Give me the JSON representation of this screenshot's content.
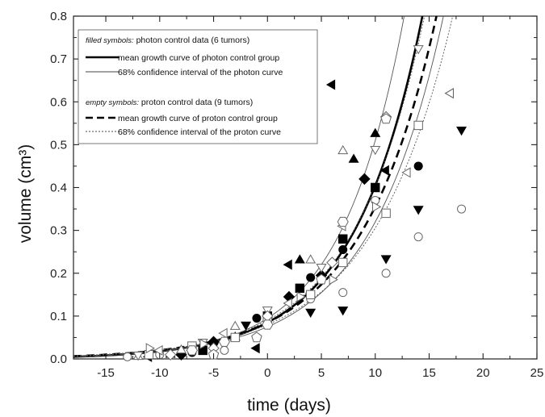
{
  "chart_data": {
    "type": "scatter",
    "title": "",
    "xlabel": "time (days)",
    "ylabel": "volume (cm³)",
    "xlim": [
      -18,
      25
    ],
    "ylim": [
      0,
      0.8
    ],
    "x_ticks": [
      -15,
      -10,
      -5,
      0,
      5,
      10,
      15,
      20,
      25
    ],
    "y_ticks": [
      0.0,
      0.1,
      0.2,
      0.3,
      0.4,
      0.5,
      0.6,
      0.7,
      0.8
    ],
    "x_tick_labels": [
      "-15",
      "-10",
      "-5",
      "0",
      "5",
      "10",
      "15",
      "20",
      "25"
    ],
    "y_tick_labels": [
      "0.0",
      "0.1",
      "0.2",
      "0.3",
      "0.4",
      "0.5",
      "0.6",
      "0.7",
      "0.8"
    ],
    "grid": false,
    "legend_position": "top-left",
    "legend": {
      "photon_header_italic": "filled symbols:",
      "photon_header_rest": " photon control data (6 tumors)",
      "photon_mean": "mean growth curve of photon control group",
      "photon_ci": "68% confidence interval of the photon curve",
      "proton_header_italic": "empty symbols:",
      "proton_header_rest": " proton control data (9 tumors)",
      "proton_mean": "mean growth curve of proton control group",
      "proton_ci": "68% confidence interval of the proton curve"
    },
    "curves": [
      {
        "name": "photon-mean",
        "a": 0.085,
        "b": 0.156,
        "style": "solid-thick"
      },
      {
        "name": "photon-ci-upper",
        "a": 0.095,
        "b": 0.168,
        "style": "solid-thin"
      },
      {
        "name": "photon-ci-lower",
        "a": 0.075,
        "b": 0.145,
        "style": "solid-thin"
      },
      {
        "name": "proton-mean",
        "a": 0.085,
        "b": 0.143,
        "style": "dashed-thick"
      },
      {
        "name": "proton-ci-upper",
        "a": 0.09,
        "b": 0.15,
        "style": "dotted-thin"
      },
      {
        "name": "proton-ci-lower",
        "a": 0.08,
        "b": 0.134,
        "style": "dotted-thin"
      }
    ],
    "series": [
      {
        "group": "photon",
        "filled": true,
        "marker": "triangle-left",
        "points": [
          [
            -11,
            0.005
          ],
          [
            -7,
            0.02
          ],
          [
            -1,
            0.025
          ],
          [
            2,
            0.22
          ],
          [
            6,
            0.64
          ],
          [
            11,
            0.44
          ],
          [
            17,
            0.62
          ]
        ]
      },
      {
        "group": "photon",
        "filled": true,
        "marker": "triangle-up",
        "points": [
          [
            -9,
            0.01
          ],
          [
            -3,
            0.05
          ],
          [
            3,
            0.23
          ],
          [
            8,
            0.465
          ],
          [
            10,
            0.525
          ]
        ]
      },
      {
        "group": "photon",
        "filled": true,
        "marker": "triangle-down",
        "points": [
          [
            -5,
            0.03
          ],
          [
            -2,
            0.08
          ],
          [
            4,
            0.11
          ],
          [
            7,
            0.115
          ],
          [
            11,
            0.235
          ],
          [
            14,
            0.35
          ],
          [
            18,
            0.535
          ]
        ]
      },
      {
        "group": "photon",
        "filled": true,
        "marker": "circle",
        "points": [
          [
            -7,
            0.015
          ],
          [
            -1,
            0.095
          ],
          [
            4,
            0.19
          ],
          [
            7,
            0.255
          ],
          [
            14,
            0.45
          ]
        ]
      },
      {
        "group": "photon",
        "filled": true,
        "marker": "square",
        "points": [
          [
            -6,
            0.02
          ],
          [
            0,
            0.1
          ],
          [
            3,
            0.165
          ],
          [
            7,
            0.28
          ],
          [
            10,
            0.4
          ]
        ]
      },
      {
        "group": "photon",
        "filled": true,
        "marker": "diamond",
        "points": [
          [
            -8,
            0.01
          ],
          [
            -5,
            0.04
          ],
          [
            2,
            0.145
          ],
          [
            5,
            0.195
          ],
          [
            9,
            0.42
          ]
        ]
      },
      {
        "group": "proton",
        "filled": false,
        "marker": "circle",
        "points": [
          [
            -13,
            0.005
          ],
          [
            -10,
            0.01
          ],
          [
            -4,
            0.02
          ],
          [
            0,
            0.085
          ],
          [
            4,
            0.14
          ],
          [
            7,
            0.155
          ],
          [
            10,
            0.37
          ],
          [
            11,
            0.2
          ],
          [
            14,
            0.285
          ],
          [
            18,
            0.35
          ]
        ]
      },
      {
        "group": "proton",
        "filled": false,
        "marker": "square",
        "points": [
          [
            -11,
            0.01
          ],
          [
            -7,
            0.03
          ],
          [
            -3,
            0.05
          ],
          [
            0,
            0.09
          ],
          [
            4,
            0.15
          ],
          [
            7,
            0.225
          ],
          [
            11,
            0.34
          ],
          [
            14,
            0.545
          ]
        ]
      },
      {
        "group": "proton",
        "filled": false,
        "marker": "triangle-up",
        "points": [
          [
            -12,
            0.005
          ],
          [
            -8,
            0.02
          ],
          [
            -3,
            0.075
          ],
          [
            4,
            0.23
          ],
          [
            7,
            0.485
          ]
        ]
      },
      {
        "group": "proton",
        "filled": false,
        "marker": "triangle-down",
        "points": [
          [
            -12,
            0.01
          ],
          [
            -6,
            0.04
          ],
          [
            0,
            0.115
          ],
          [
            5,
            0.215
          ],
          [
            10,
            0.49
          ],
          [
            14,
            0.725
          ]
        ]
      },
      {
        "group": "proton",
        "filled": false,
        "marker": "diamond",
        "points": [
          [
            -9,
            0.01
          ],
          [
            -5,
            0.025
          ],
          [
            0,
            0.1
          ],
          [
            6,
            0.225
          ],
          [
            11,
            0.565
          ]
        ]
      },
      {
        "group": "proton",
        "filled": false,
        "marker": "triangle-left",
        "points": [
          [
            -10,
            0.02
          ],
          [
            -4,
            0.06
          ],
          [
            2,
            0.13
          ],
          [
            7,
            0.31
          ],
          [
            13,
            0.435
          ],
          [
            17,
            0.62
          ]
        ]
      },
      {
        "group": "proton",
        "filled": false,
        "marker": "triangle-right",
        "points": [
          [
            -11,
            0.025
          ],
          [
            -6,
            0.035
          ],
          [
            3,
            0.145
          ],
          [
            6,
            0.185
          ],
          [
            10,
            0.355
          ]
        ]
      },
      {
        "group": "proton",
        "filled": false,
        "marker": "hexagon",
        "points": [
          [
            -7,
            0.02
          ],
          [
            -4,
            0.04
          ],
          [
            0,
            0.08
          ],
          [
            7,
            0.32
          ]
        ]
      },
      {
        "group": "proton",
        "filled": false,
        "marker": "pentagon",
        "points": [
          [
            -5,
            0.01
          ],
          [
            -1,
            0.05
          ],
          [
            5,
            0.185
          ],
          [
            11,
            0.56
          ]
        ]
      }
    ]
  }
}
